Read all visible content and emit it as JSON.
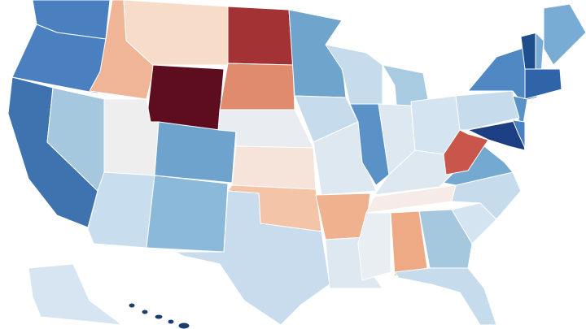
{
  "map": {
    "regions": [
      {
        "color": "#4a80c0"
      },
      {
        "color": "#4a80c0"
      },
      {
        "color": "#3f73b0"
      },
      {
        "color": "#a6c8df"
      },
      {
        "color": "#efb596"
      },
      {
        "color": "#f7dcca"
      },
      {
        "color": "#5e0d1f"
      },
      {
        "color": "#eeeeee"
      },
      {
        "color": "#6ea3cd"
      },
      {
        "color": "#c8dded"
      },
      {
        "color": "#8ab9da"
      },
      {
        "color": "#a33234"
      },
      {
        "color": "#e08a6e"
      },
      {
        "color": "#e9edf2"
      },
      {
        "color": "#f6e3da"
      },
      {
        "color": "#f3c4a6"
      },
      {
        "color": "#c8dced"
      },
      {
        "color": "#6fa4cd"
      },
      {
        "color": "#c6dcec"
      },
      {
        "color": "#dde8f1"
      },
      {
        "color": "#efb18e"
      },
      {
        "color": "#dde8f1"
      },
      {
        "color": "#c6dcec"
      },
      {
        "color": "#5a92c8"
      },
      {
        "color": "#a8cbe2"
      },
      {
        "color": "#dde8f1"
      },
      {
        "color": "#d4e4f0"
      },
      {
        "color": "#dde8f1"
      },
      {
        "color": "#f6ebe6"
      },
      {
        "color": "#e9eef3"
      },
      {
        "color": "#eea985"
      },
      {
        "color": "#a6c8df"
      },
      {
        "color": "#c6dcec"
      },
      {
        "color": "#d4e4f0"
      },
      {
        "color": "#c6dcec"
      },
      {
        "color": "#74a9d2"
      },
      {
        "color": "#c9564a"
      },
      {
        "color": "#c6dcec"
      },
      {
        "color": "#4f88c3"
      },
      {
        "color": "#1f4e8c"
      },
      {
        "color": "#79acd4"
      },
      {
        "color": "#79acd4"
      },
      {
        "color": "#2f65a8"
      },
      {
        "color": "#5a92c8"
      },
      {
        "color": "#1b3f82"
      },
      {
        "color": "#4b80c0"
      },
      {
        "color": "#d6e5f1"
      },
      {
        "color": "#1c3d70"
      }
    ]
  }
}
